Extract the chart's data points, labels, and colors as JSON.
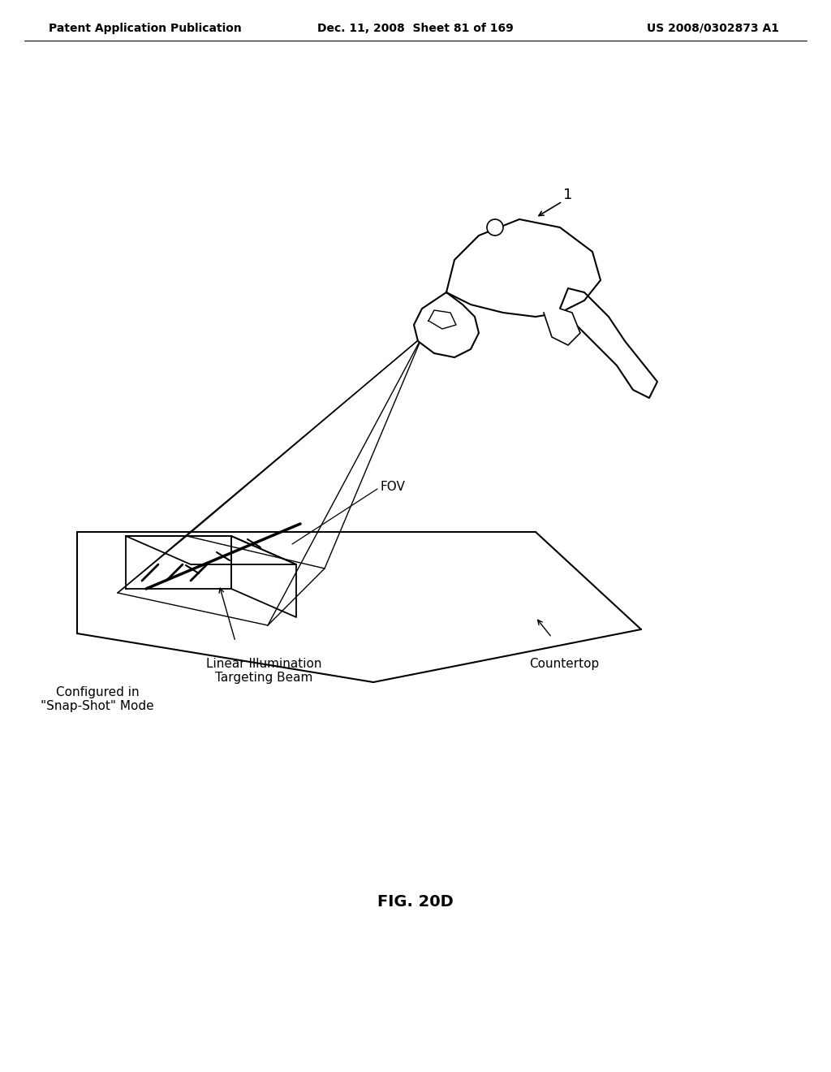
{
  "title": "FIG. 20D",
  "header_left": "Patent Application Publication",
  "header_middle": "Dec. 11, 2008  Sheet 81 of 169",
  "header_right": "US 2008/0302873 A1",
  "label_1": "1",
  "label_fov": "FOV",
  "label_linear": "Linear Illumination\nTargeting Beam",
  "label_countertop": "Countertop",
  "label_configured": "Configured in\n\"Snap-Shot\" Mode",
  "bg_color": "#ffffff",
  "line_color": "#000000",
  "header_fontsize": 10,
  "title_fontsize": 14,
  "label_fontsize": 11
}
